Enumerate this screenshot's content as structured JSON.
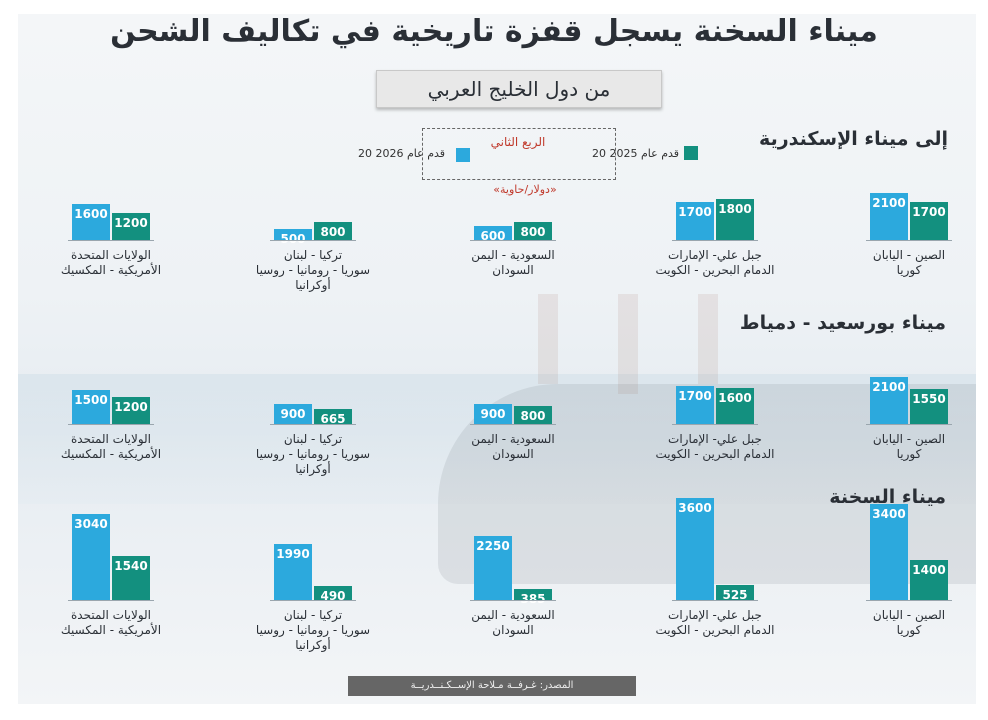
{
  "title": "ميناء السخنة يسجل قفزة تاريخية في تكاليف الشحن",
  "subtitle": "من دول الخليج العربي",
  "legend": {
    "quarter": "الربع الثاني",
    "unit": "«دولار/حاوية»",
    "series_2025": "20 قدم عام 2025",
    "series_2026": "20 قدم عام 2026"
  },
  "colors": {
    "s2026": "#2ca9dd",
    "s2025": "#13907f"
  },
  "source": "المصدر: غـرفــة مـلاحة الإســكـنــدريــة",
  "chart_data": {
    "type": "bar",
    "series": [
      {
        "name": "20 قدم عام 2026",
        "key": "2026"
      },
      {
        "name": "20 قدم عام 2025",
        "key": "2025"
      }
    ],
    "categories": [
      {
        "line1": "الصين - اليابان",
        "line2": "كوريا",
        "line3": ""
      },
      {
        "line1": "جبل علي- الإمارات",
        "line2": "الدمام البحرين - الكويت",
        "line3": ""
      },
      {
        "line1": "السعودية - اليمن",
        "line2": "السودان",
        "line3": ""
      },
      {
        "line1": "تركيا - لبنان",
        "line2": "سوريا - رومانيا - روسيا",
        "line3": "أوكرانيا"
      },
      {
        "line1": "الولايات المتحدة",
        "line2": "الأمريكية - المكسيك",
        "line3": ""
      }
    ],
    "panels": [
      {
        "title": "إلى ميناء الإسكندرية",
        "v2026": [
          2100,
          1700,
          600,
          500,
          1600
        ],
        "v2025": [
          1700,
          1800,
          800,
          800,
          1200
        ]
      },
      {
        "title": "ميناء بورسعيد - دمياط",
        "v2026": [
          2100,
          1700,
          900,
          900,
          1500
        ],
        "v2025": [
          1550,
          1600,
          800,
          665,
          1200
        ]
      },
      {
        "title": "ميناء السخنة",
        "v2026": [
          3400,
          3600,
          2250,
          1990,
          3040
        ],
        "v2025": [
          1400,
          525,
          385,
          490,
          1540
        ]
      }
    ]
  }
}
